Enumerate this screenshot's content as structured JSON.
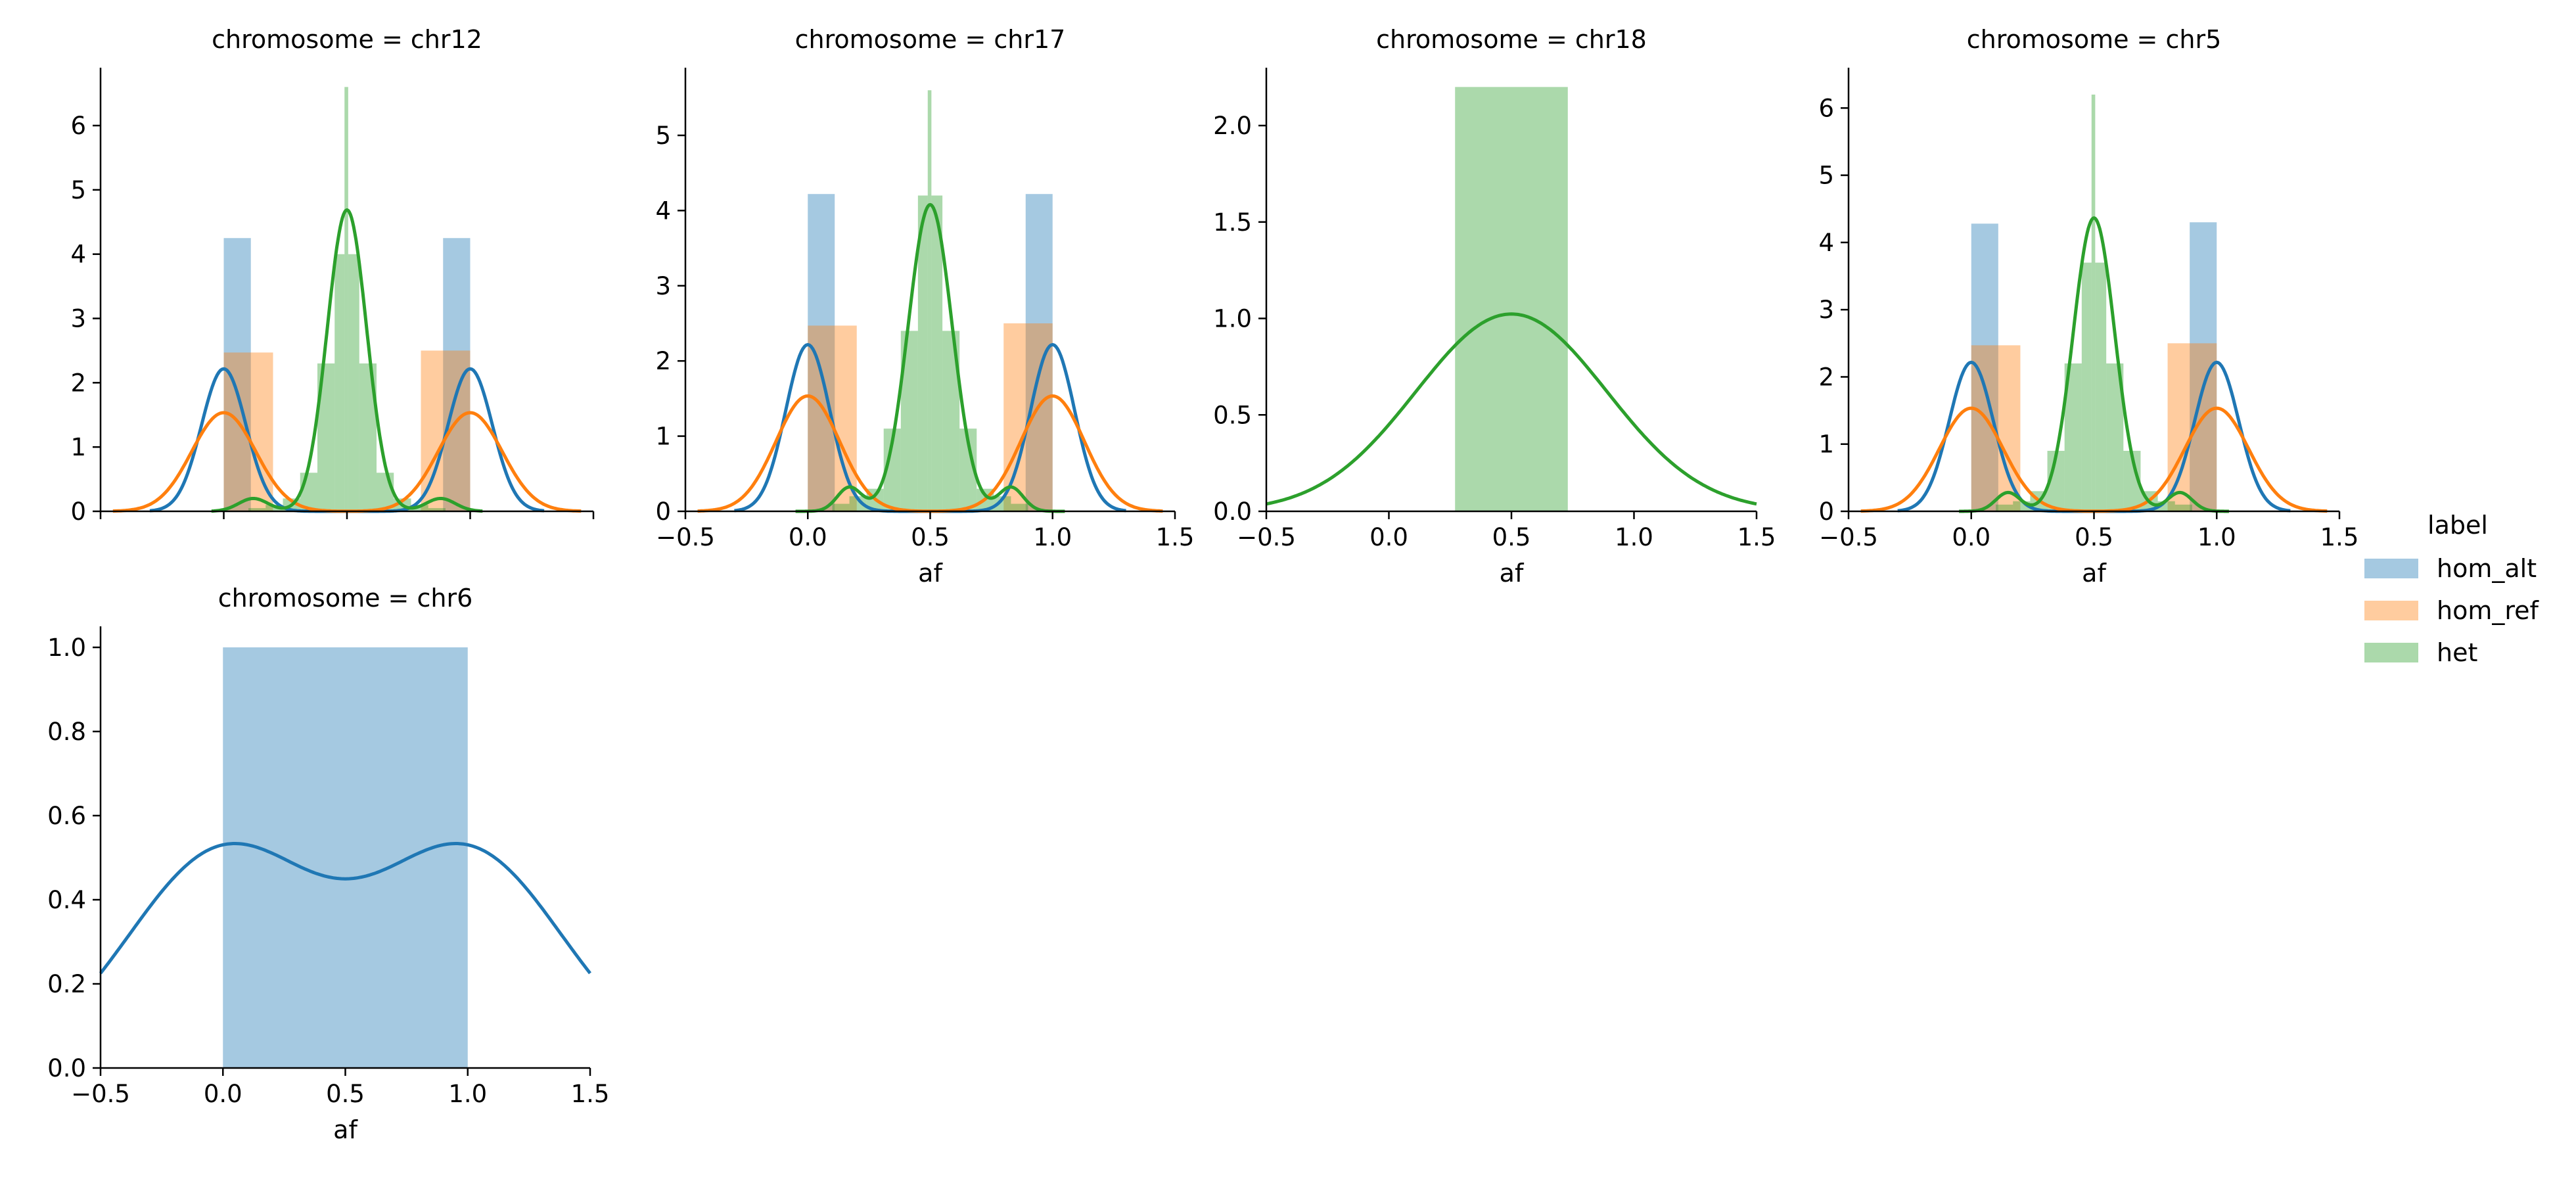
{
  "chart_data": {
    "type": "bar",
    "legend": {
      "title": "label",
      "placement": "right",
      "entries": [
        {
          "name": "hom_alt",
          "color": "#1f77b4"
        },
        {
          "name": "hom_ref",
          "color": "#ff7f0e"
        },
        {
          "name": "het",
          "color": "#2ca02c"
        }
      ]
    },
    "xlabel": "af",
    "panels": [
      {
        "title": "chromosome = chr12",
        "ylim": [
          0,
          6.9
        ],
        "yticks": [
          0,
          1,
          2,
          3,
          4,
          5,
          6
        ],
        "xlim": [
          -0.5,
          1.5
        ],
        "xticks": [],
        "xlabel": "",
        "bars": [
          {
            "series": "hom_alt",
            "x0": 0.0,
            "x1": 0.11,
            "value": 4.25
          },
          {
            "series": "hom_alt",
            "x0": 0.89,
            "x1": 1.0,
            "value": 4.25
          },
          {
            "series": "hom_ref",
            "x0": 0.0,
            "x1": 0.2,
            "value": 2.47
          },
          {
            "series": "hom_ref",
            "x0": 0.3,
            "x1": 0.5,
            "value": 0.0
          },
          {
            "series": "hom_ref",
            "x0": 0.8,
            "x1": 1.0,
            "value": 2.5
          },
          {
            "series": "het",
            "x0": 0.1,
            "x1": 0.17,
            "value": 0.05
          },
          {
            "series": "het",
            "x0": 0.17,
            "x1": 0.24,
            "value": 0.1
          },
          {
            "series": "het",
            "x0": 0.24,
            "x1": 0.31,
            "value": 0.2
          },
          {
            "series": "het",
            "x0": 0.31,
            "x1": 0.38,
            "value": 0.6
          },
          {
            "series": "het",
            "x0": 0.38,
            "x1": 0.45,
            "value": 2.3
          },
          {
            "series": "het",
            "x0": 0.45,
            "x1": 0.49,
            "value": 4.0
          },
          {
            "series": "het",
            "x0": 0.49,
            "x1": 0.505,
            "value": 6.6
          },
          {
            "series": "het",
            "x0": 0.505,
            "x1": 0.55,
            "value": 4.0
          },
          {
            "series": "het",
            "x0": 0.55,
            "x1": 0.62,
            "value": 2.3
          },
          {
            "series": "het",
            "x0": 0.62,
            "x1": 0.69,
            "value": 0.6
          },
          {
            "series": "het",
            "x0": 0.69,
            "x1": 0.76,
            "value": 0.2
          },
          {
            "series": "het",
            "x0": 0.76,
            "x1": 0.83,
            "value": 0.1
          },
          {
            "series": "het",
            "x0": 0.83,
            "x1": 0.9,
            "value": 0.05
          }
        ],
        "curves": [
          {
            "series": "hom_alt",
            "components": [
              [
                0.0,
                0.09,
                0.5
              ],
              [
                1.0,
                0.09,
                0.5
              ]
            ],
            "range": [
              -0.3,
              1.3
            ]
          },
          {
            "series": "hom_ref",
            "components": [
              [
                0.0,
                0.13,
                0.5
              ],
              [
                1.0,
                0.13,
                0.5
              ]
            ],
            "range": [
              -0.45,
              1.45
            ]
          },
          {
            "series": "het",
            "components": [
              [
                0.5,
                0.08,
                0.94
              ],
              [
                0.12,
                0.06,
                0.03
              ],
              [
                0.88,
                0.06,
                0.03
              ]
            ],
            "range": [
              -0.05,
              1.05
            ]
          }
        ]
      },
      {
        "title": "chromosome = chr17",
        "ylim": [
          0,
          5.9
        ],
        "yticks": [
          0,
          1,
          2,
          3,
          4,
          5
        ],
        "xlim": [
          -0.5,
          1.5
        ],
        "xticks": [
          "−0.5",
          "0.0",
          "0.5",
          "1.0",
          "1.5"
        ],
        "xlabel": "af",
        "bars": [
          {
            "series": "hom_alt",
            "x0": 0.0,
            "x1": 0.11,
            "value": 4.22
          },
          {
            "series": "hom_alt",
            "x0": 0.89,
            "x1": 1.0,
            "value": 4.22
          },
          {
            "series": "hom_ref",
            "x0": 0.0,
            "x1": 0.2,
            "value": 2.47
          },
          {
            "series": "hom_ref",
            "x0": 0.8,
            "x1": 1.0,
            "value": 2.5
          },
          {
            "series": "het",
            "x0": 0.1,
            "x1": 0.17,
            "value": 0.1
          },
          {
            "series": "het",
            "x0": 0.17,
            "x1": 0.24,
            "value": 0.2
          },
          {
            "series": "het",
            "x0": 0.24,
            "x1": 0.31,
            "value": 0.3
          },
          {
            "series": "het",
            "x0": 0.31,
            "x1": 0.38,
            "value": 1.1
          },
          {
            "series": "het",
            "x0": 0.38,
            "x1": 0.45,
            "value": 2.4
          },
          {
            "series": "het",
            "x0": 0.45,
            "x1": 0.49,
            "value": 4.2
          },
          {
            "series": "het",
            "x0": 0.49,
            "x1": 0.505,
            "value": 5.6
          },
          {
            "series": "het",
            "x0": 0.505,
            "x1": 0.55,
            "value": 4.2
          },
          {
            "series": "het",
            "x0": 0.55,
            "x1": 0.62,
            "value": 2.4
          },
          {
            "series": "het",
            "x0": 0.62,
            "x1": 0.69,
            "value": 1.1
          },
          {
            "series": "het",
            "x0": 0.69,
            "x1": 0.76,
            "value": 0.3
          },
          {
            "series": "het",
            "x0": 0.76,
            "x1": 0.83,
            "value": 0.2
          },
          {
            "series": "het",
            "x0": 0.83,
            "x1": 0.9,
            "value": 0.1
          }
        ],
        "curves": [
          {
            "series": "hom_alt",
            "components": [
              [
                0.0,
                0.09,
                0.5
              ],
              [
                1.0,
                0.09,
                0.5
              ]
            ],
            "range": [
              -0.3,
              1.3
            ]
          },
          {
            "series": "hom_ref",
            "components": [
              [
                0.0,
                0.13,
                0.5
              ],
              [
                1.0,
                0.13,
                0.5
              ]
            ],
            "range": [
              -0.45,
              1.45
            ]
          },
          {
            "series": "het",
            "components": [
              [
                0.5,
                0.09,
                0.92
              ],
              [
                0.17,
                0.05,
                0.04
              ],
              [
                0.83,
                0.05,
                0.04
              ]
            ],
            "range": [
              -0.05,
              1.05
            ]
          }
        ]
      },
      {
        "title": "chromosome = chr18",
        "ylim": [
          0,
          2.3
        ],
        "yticks": [
          "0.0",
          "0.5",
          "1.0",
          "1.5",
          "2.0"
        ],
        "ytickvals": [
          0,
          0.5,
          1.0,
          1.5,
          2.0
        ],
        "xlim": [
          -0.5,
          1.5
        ],
        "xticks": [
          "−0.5",
          "0.0",
          "0.5",
          "1.0",
          "1.5"
        ],
        "xlabel": "af",
        "bars": [
          {
            "series": "het",
            "x0": 0.27,
            "x1": 0.73,
            "value": 2.2
          }
        ],
        "curves": [
          {
            "series": "het",
            "components": [
              [
                0.5,
                0.39,
                1.0
              ]
            ],
            "range": [
              -0.5,
              1.5
            ]
          }
        ]
      },
      {
        "title": "chromosome = chr5",
        "ylim": [
          0,
          6.6
        ],
        "yticks": [
          0,
          1,
          2,
          3,
          4,
          5,
          6
        ],
        "xlim": [
          -0.5,
          1.5
        ],
        "xticks": [
          "−0.5",
          "0.0",
          "0.5",
          "1.0",
          "1.5"
        ],
        "xlabel": "af",
        "bars": [
          {
            "series": "hom_alt",
            "x0": 0.0,
            "x1": 0.11,
            "value": 4.28
          },
          {
            "series": "hom_alt",
            "x0": 0.89,
            "x1": 1.0,
            "value": 4.3
          },
          {
            "series": "hom_ref",
            "x0": 0.0,
            "x1": 0.2,
            "value": 2.47
          },
          {
            "series": "hom_ref",
            "x0": 0.8,
            "x1": 1.0,
            "value": 2.5
          },
          {
            "series": "het",
            "x0": 0.1,
            "x1": 0.17,
            "value": 0.1
          },
          {
            "series": "het",
            "x0": 0.17,
            "x1": 0.24,
            "value": 0.15
          },
          {
            "series": "het",
            "x0": 0.24,
            "x1": 0.31,
            "value": 0.3
          },
          {
            "series": "het",
            "x0": 0.31,
            "x1": 0.38,
            "value": 0.9
          },
          {
            "series": "het",
            "x0": 0.38,
            "x1": 0.45,
            "value": 2.2
          },
          {
            "series": "het",
            "x0": 0.45,
            "x1": 0.49,
            "value": 3.7
          },
          {
            "series": "het",
            "x0": 0.49,
            "x1": 0.505,
            "value": 6.2
          },
          {
            "series": "het",
            "x0": 0.505,
            "x1": 0.55,
            "value": 3.7
          },
          {
            "series": "het",
            "x0": 0.55,
            "x1": 0.62,
            "value": 2.2
          },
          {
            "series": "het",
            "x0": 0.62,
            "x1": 0.69,
            "value": 0.9
          },
          {
            "series": "het",
            "x0": 0.69,
            "x1": 0.76,
            "value": 0.3
          },
          {
            "series": "het",
            "x0": 0.76,
            "x1": 0.83,
            "value": 0.15
          },
          {
            "series": "het",
            "x0": 0.83,
            "x1": 0.9,
            "value": 0.1
          }
        ],
        "curves": [
          {
            "series": "hom_alt",
            "components": [
              [
                0.0,
                0.09,
                0.5
              ],
              [
                1.0,
                0.09,
                0.5
              ]
            ],
            "range": [
              -0.3,
              1.3
            ]
          },
          {
            "series": "hom_ref",
            "components": [
              [
                0.0,
                0.13,
                0.5
              ],
              [
                1.0,
                0.13,
                0.5
              ]
            ],
            "range": [
              -0.45,
              1.45
            ]
          },
          {
            "series": "het",
            "components": [
              [
                0.5,
                0.085,
                0.93
              ],
              [
                0.15,
                0.05,
                0.035
              ],
              [
                0.85,
                0.05,
                0.035
              ]
            ],
            "range": [
              -0.05,
              1.05
            ]
          }
        ]
      },
      {
        "title": "chromosome = chr6",
        "ylim": [
          0,
          1.05
        ],
        "yticks": [
          "0.0",
          "0.2",
          "0.4",
          "0.6",
          "0.8",
          "1.0"
        ],
        "ytickvals": [
          0,
          0.2,
          0.4,
          0.6,
          0.8,
          1.0
        ],
        "xlim": [
          -0.5,
          1.5
        ],
        "xticks": [
          "−0.5",
          "0.0",
          "0.5",
          "1.0",
          "1.5"
        ],
        "xlabel": "af",
        "bars": [
          {
            "series": "hom_alt",
            "x0": 0.0,
            "x1": 1.0,
            "value": 1.0
          }
        ],
        "curves": [
          {
            "series": "hom_alt",
            "components": [
              [
                0.0,
                0.39,
                0.5
              ],
              [
                1.0,
                0.39,
                0.5
              ]
            ],
            "range": [
              -0.5,
              1.5
            ]
          }
        ]
      }
    ]
  }
}
